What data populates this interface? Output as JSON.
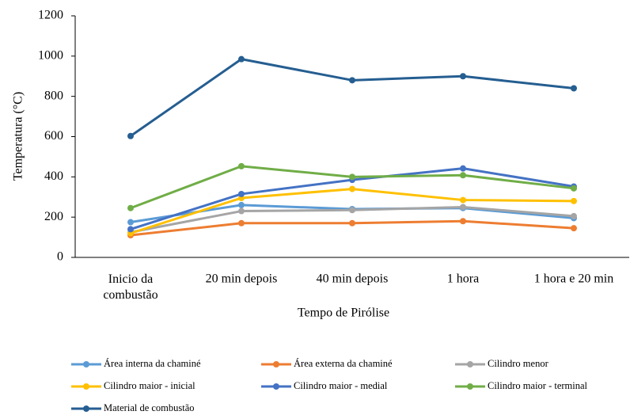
{
  "chart_data": {
    "type": "line",
    "x_label": "Tempo  de Pirólise",
    "y_label": "Temperatura  (°C)",
    "categories": [
      "Inicio da combustão",
      "20 min depois",
      "40 min depois",
      "1 hora",
      "1 hora e 20 min"
    ],
    "ylim": [
      0,
      1200
    ],
    "yticks": [
      0,
      200,
      400,
      600,
      800,
      1000,
      1200
    ],
    "legend": "bottom",
    "series": [
      {
        "name": "Área interna da chaminé",
        "color": "#5b9bd5",
        "values": [
          175,
          260,
          240,
          245,
          195
        ]
      },
      {
        "name": "Área externa da chaminé",
        "color": "#ed7d31",
        "values": [
          110,
          170,
          170,
          180,
          145
        ]
      },
      {
        "name": "Cilindro menor",
        "color": "#a5a5a5",
        "values": [
          125,
          230,
          235,
          250,
          205
        ]
      },
      {
        "name": "Cilindro maior  - inicial",
        "color": "#ffc000",
        "values": [
          120,
          295,
          340,
          285,
          280
        ]
      },
      {
        "name": "Cilindro maior - medial",
        "color": "#4472c4",
        "values": [
          140,
          315,
          385,
          442,
          352
        ]
      },
      {
        "name": "Cilindro maior - terminal",
        "color": "#70ad47",
        "values": [
          245,
          453,
          400,
          408,
          343
        ]
      },
      {
        "name": "Material de combustão",
        "color": "#255e91",
        "values": [
          603,
          985,
          880,
          900,
          840
        ]
      }
    ]
  }
}
